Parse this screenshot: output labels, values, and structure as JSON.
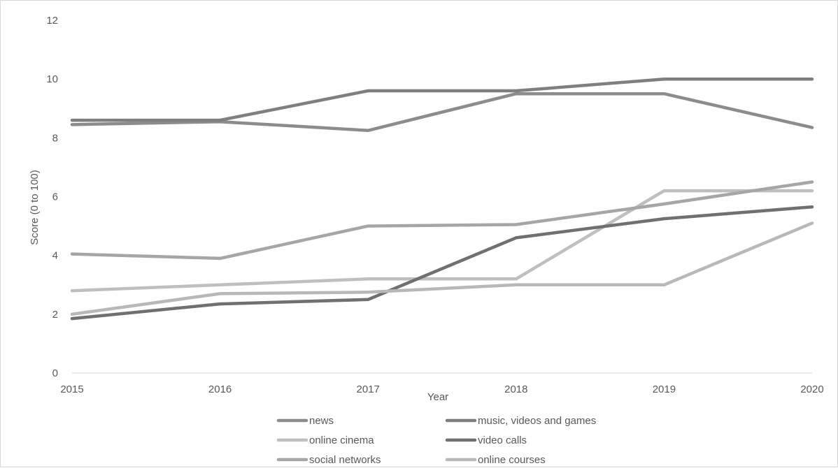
{
  "chart_data": {
    "type": "line",
    "x": [
      2015,
      2016,
      2017,
      2018,
      2019,
      2020
    ],
    "xlabel": "Year",
    "ylabel": "Score (0 to 100)",
    "ylim": [
      0,
      12
    ],
    "yticks": [
      0,
      2,
      4,
      6,
      8,
      10,
      12
    ],
    "grid": false,
    "legend_position": "bottom",
    "series": [
      {
        "name": "news",
        "color": "#8c8c8c",
        "values": [
          8.45,
          8.55,
          8.25,
          9.5,
          9.5,
          8.35
        ]
      },
      {
        "name": "music, videos and games",
        "color": "#7f7f7f",
        "values": [
          8.6,
          8.6,
          9.6,
          9.6,
          10.0,
          10.0
        ]
      },
      {
        "name": "online cinema",
        "color": "#bfbfbf",
        "values": [
          2.8,
          3.0,
          3.2,
          3.2,
          6.2,
          6.2
        ]
      },
      {
        "name": "video calls",
        "color": "#707070",
        "values": [
          1.85,
          2.35,
          2.5,
          4.6,
          5.25,
          5.65
        ]
      },
      {
        "name": "social networks",
        "color": "#a6a6a6",
        "values": [
          4.05,
          3.9,
          5.0,
          5.05,
          5.75,
          6.5
        ]
      },
      {
        "name": "online courses",
        "color": "#b8b8b8",
        "values": [
          2.0,
          2.7,
          2.75,
          3.0,
          3.0,
          5.1
        ]
      }
    ]
  }
}
